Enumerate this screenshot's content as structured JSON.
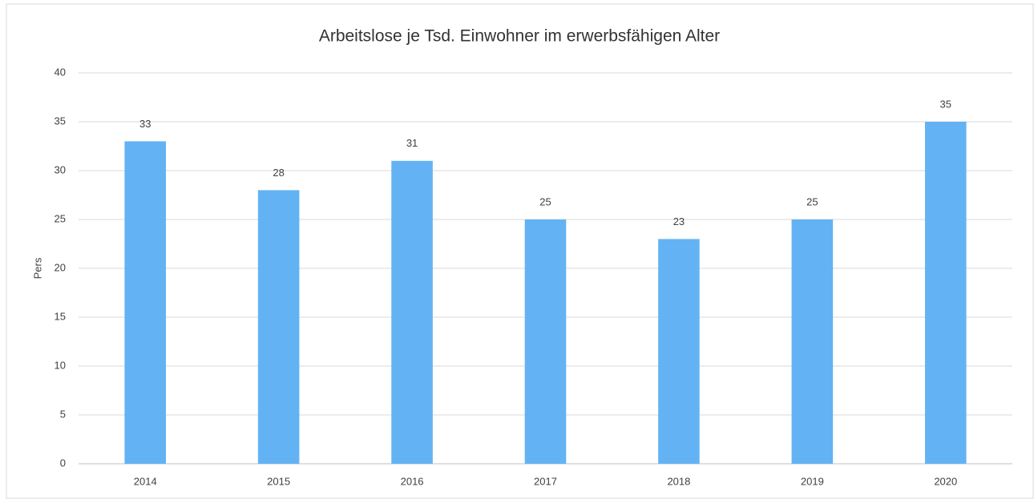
{
  "chart_data": {
    "type": "bar",
    "title": "Arbeitslose je Tsd. Einwohner im erwerbsfähigen Alter",
    "y_label": "Pers",
    "categories": [
      "2014",
      "2015",
      "2016",
      "2017",
      "2018",
      "2019",
      "2020"
    ],
    "values": [
      33,
      28,
      31,
      25,
      23,
      25,
      35
    ],
    "color": "#63b3f4",
    "ylim": [
      0,
      40
    ],
    "yticks": [
      0,
      5,
      10,
      15,
      20,
      25,
      30,
      35,
      40
    ],
    "grid": true,
    "data_labels": true
  }
}
